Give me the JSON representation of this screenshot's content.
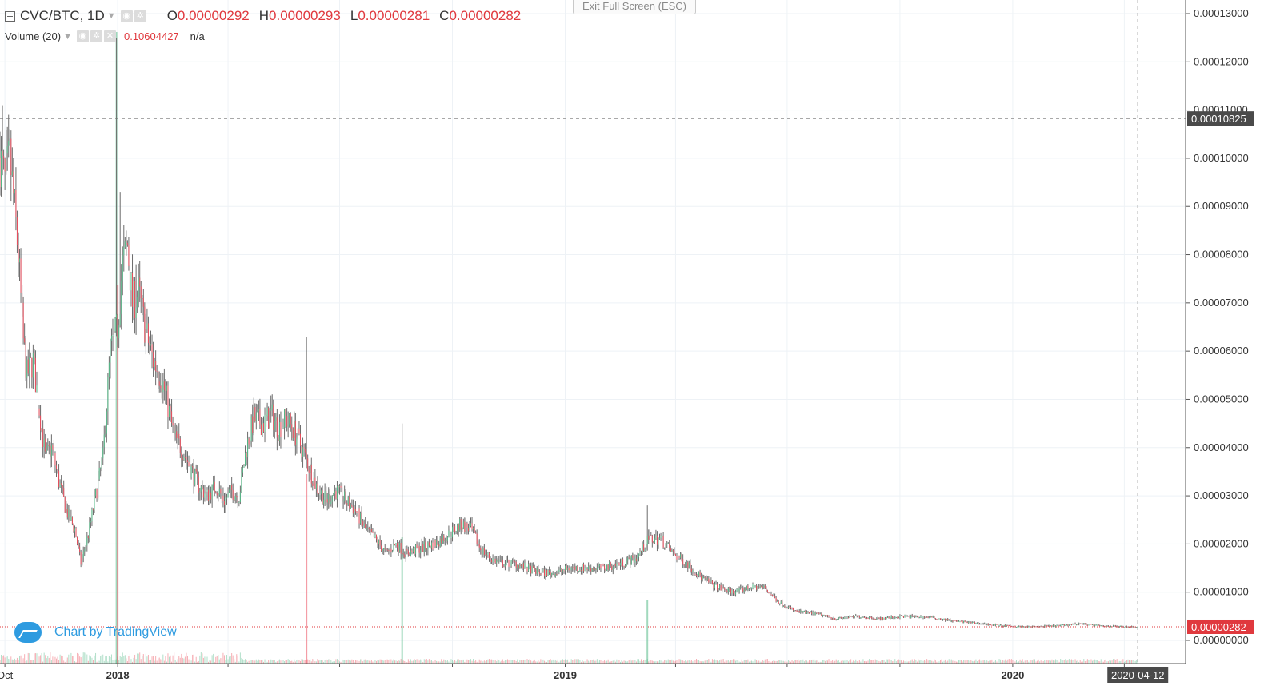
{
  "legend": {
    "symbol": "CVC/BTC, 1D",
    "ohlc": [
      {
        "key": "O",
        "value": "0.00000292"
      },
      {
        "key": "H",
        "value": "0.00000293"
      },
      {
        "key": "L",
        "value": "0.00000281"
      },
      {
        "key": "C",
        "value": "0.00000282"
      }
    ],
    "volume_label": "Volume (20)",
    "volume_value": "0.10604427",
    "volume_na": "n/a"
  },
  "exit_fullscreen_label": "Exit Full Screen (ESC)",
  "watermark_text": "Chart by TradingView",
  "colors": {
    "up": "#53b987",
    "down": "#eb4d5c",
    "wick": "#6b6b6b",
    "grid": "#eef2f6",
    "last_price_line": "#e0393e",
    "crosshair": "#757575",
    "axis_label_bg": "#4a4a4a"
  },
  "chart_data": {
    "type": "candlestick",
    "title": "CVC/BTC, 1D",
    "y_axis": {
      "ticks": [
        "0.00013000",
        "0.00012000",
        "0.00011000",
        "0.00010000",
        "0.00009000",
        "0.00008000",
        "0.00007000",
        "0.00006000",
        "0.00005000",
        "0.00004000",
        "0.00003000",
        "0.00002000",
        "0.00001000",
        "0.00000000"
      ],
      "ylim": [
        0,
        0.000134
      ],
      "last_price_label": "0.00000282",
      "last_price": 2.82e-06,
      "crosshair_price_label": "0.00010825",
      "crosshair_price": 0.00010825
    },
    "x_axis": {
      "tick_labels": [
        "Oct",
        "2018",
        "2019",
        "2020"
      ],
      "range": [
        "2017-09-27",
        "2020-05-21"
      ],
      "crosshair_date_label": "2020-04-12",
      "crosshair_date": "2020-04-12"
    },
    "grid": true,
    "close_series": {
      "approximate": true,
      "points": [
        [
          "2017-09-27",
          0.0001
        ],
        [
          "2017-10-01",
          9.5e-05
        ],
        [
          "2017-10-05",
          0.0001
        ],
        [
          "2017-10-08",
          9.2e-05
        ],
        [
          "2017-10-12",
          8e-05
        ],
        [
          "2017-10-16",
          6.2e-05
        ],
        [
          "2017-10-19",
          5.5e-05
        ],
        [
          "2017-10-24",
          5.8e-05
        ],
        [
          "2017-10-28",
          5e-05
        ],
        [
          "2017-11-03",
          3.8e-05
        ],
        [
          "2017-11-08",
          4e-05
        ],
        [
          "2017-11-14",
          3.3e-05
        ],
        [
          "2017-11-20",
          2.7e-05
        ],
        [
          "2017-11-27",
          2.3e-05
        ],
        [
          "2017-12-02",
          1.6e-05
        ],
        [
          "2017-12-08",
          2.2e-05
        ],
        [
          "2017-12-14",
          3e-05
        ],
        [
          "2017-12-20",
          3.8e-05
        ],
        [
          "2017-12-26",
          6e-05
        ],
        [
          "2018-01-01",
          6.5e-05
        ],
        [
          "2018-01-05",
          7.8e-05
        ],
        [
          "2018-01-09",
          8.2e-05
        ],
        [
          "2018-01-13",
          7e-05
        ],
        [
          "2018-01-18",
          7.2e-05
        ],
        [
          "2018-01-24",
          6.4e-05
        ],
        [
          "2018-01-30",
          5.8e-05
        ],
        [
          "2018-02-05",
          5.5e-05
        ],
        [
          "2018-02-10",
          5e-05
        ],
        [
          "2018-02-16",
          4.2e-05
        ],
        [
          "2018-02-22",
          4e-05
        ],
        [
          "2018-03-01",
          3.6e-05
        ],
        [
          "2018-03-08",
          3.2e-05
        ],
        [
          "2018-03-15",
          3e-05
        ],
        [
          "2018-03-22",
          3.2e-05
        ],
        [
          "2018-03-29",
          2.9e-05
        ],
        [
          "2018-04-04",
          3.1e-05
        ],
        [
          "2018-04-10",
          3e-05
        ],
        [
          "2018-04-16",
          4e-05
        ],
        [
          "2018-04-22",
          4.6e-05
        ],
        [
          "2018-04-30",
          4.5e-05
        ],
        [
          "2018-05-06",
          4.7e-05
        ],
        [
          "2018-05-12",
          4.4e-05
        ],
        [
          "2018-05-18",
          4.6e-05
        ],
        [
          "2018-05-24",
          4.4e-05
        ],
        [
          "2018-05-31",
          4e-05
        ],
        [
          "2018-06-06",
          3.6e-05
        ],
        [
          "2018-06-12",
          3.2e-05
        ],
        [
          "2018-06-20",
          2.9e-05
        ],
        [
          "2018-06-28",
          3.1e-05
        ],
        [
          "2018-07-06",
          2.9e-05
        ],
        [
          "2018-07-14",
          2.7e-05
        ],
        [
          "2018-07-22",
          2.3e-05
        ],
        [
          "2018-07-30",
          2.1e-05
        ],
        [
          "2018-08-08",
          1.8e-05
        ],
        [
          "2018-08-16",
          2e-05
        ],
        [
          "2018-08-24",
          1.8e-05
        ],
        [
          "2018-09-04",
          1.9e-05
        ],
        [
          "2018-09-16",
          2e-05
        ],
        [
          "2018-09-28",
          2.2e-05
        ],
        [
          "2018-10-08",
          2.4e-05
        ],
        [
          "2018-10-16",
          2.3e-05
        ],
        [
          "2018-10-24",
          1.9e-05
        ],
        [
          "2018-11-01",
          1.7e-05
        ],
        [
          "2018-11-10",
          1.6e-05
        ],
        [
          "2018-11-20",
          1.6e-05
        ],
        [
          "2018-12-01",
          1.5e-05
        ],
        [
          "2018-12-12",
          1.4e-05
        ],
        [
          "2018-12-24",
          1.4e-05
        ],
        [
          "2019-01-05",
          1.5e-05
        ],
        [
          "2019-01-18",
          1.5e-05
        ],
        [
          "2019-02-01",
          1.5e-05
        ],
        [
          "2019-02-15",
          1.6e-05
        ],
        [
          "2019-02-28",
          1.7e-05
        ],
        [
          "2019-03-10",
          2.1e-05
        ],
        [
          "2019-03-20",
          2.1e-05
        ],
        [
          "2019-03-30",
          1.8e-05
        ],
        [
          "2019-04-10",
          1.6e-05
        ],
        [
          "2019-04-22",
          1.3e-05
        ],
        [
          "2019-05-05",
          1.1e-05
        ],
        [
          "2019-05-18",
          1e-05
        ],
        [
          "2019-06-01",
          1.1e-05
        ],
        [
          "2019-06-12",
          1.1e-05
        ],
        [
          "2019-06-24",
          8e-06
        ],
        [
          "2019-07-08",
          6e-06
        ],
        [
          "2019-07-25",
          5.5e-06
        ],
        [
          "2019-08-10",
          4.5e-06
        ],
        [
          "2019-08-28",
          5e-06
        ],
        [
          "2019-09-15",
          4.5e-06
        ],
        [
          "2019-10-05",
          5e-06
        ],
        [
          "2019-10-25",
          4.8e-06
        ],
        [
          "2019-11-15",
          4e-06
        ],
        [
          "2019-12-05",
          3.5e-06
        ],
        [
          "2019-12-25",
          3e-06
        ],
        [
          "2020-01-15",
          2.8e-06
        ],
        [
          "2020-02-05",
          3e-06
        ],
        [
          "2020-02-25",
          3.5e-06
        ],
        [
          "2020-03-12",
          3e-06
        ],
        [
          "2020-03-28",
          2.9e-06
        ],
        [
          "2020-04-12",
          2.8e-06
        ]
      ]
    },
    "notable_highs": {
      "approximate": true,
      "points": [
        [
          "2017-09-29",
          0.000111
        ],
        [
          "2017-12-31",
          0.000125
        ],
        [
          "2018-01-03",
          9.3e-05
        ],
        [
          "2018-01-16",
          7.8e-05
        ],
        [
          "2018-06-04",
          6.3e-05
        ],
        [
          "2018-08-21",
          4.5e-05
        ],
        [
          "2019-03-09",
          2.8e-05
        ]
      ]
    },
    "notable_lows": {
      "approximate": true,
      "points": [
        [
          "2017-12-03",
          1.55e-05
        ]
      ]
    },
    "volume": {
      "series_name": "Volume (20)",
      "approximate": true,
      "spikes": [
        [
          "2017-12-31",
          1.0
        ],
        [
          "2018-01-01",
          0.6
        ],
        [
          "2018-06-04",
          0.3
        ],
        [
          "2018-08-21",
          0.2
        ],
        [
          "2019-03-09",
          0.1
        ]
      ]
    }
  }
}
